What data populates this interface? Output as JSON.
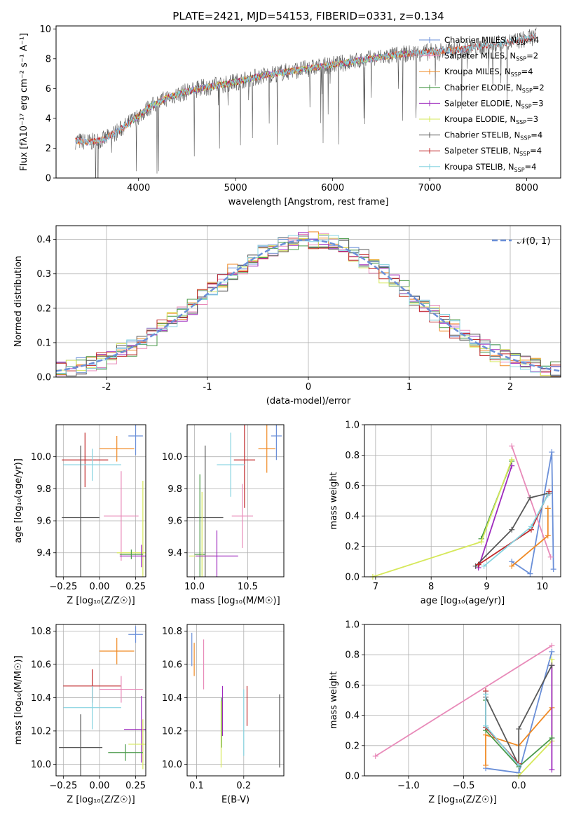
{
  "colors": {
    "c1": "#6a8fd8",
    "c2": "#e88ab9",
    "c3": "#f08a24",
    "c4": "#4a9a4a",
    "c5": "#9d29bd",
    "c6": "#d6e85a",
    "c7": "#585858",
    "c8": "#c0292a",
    "c9": "#86d3e0",
    "gaussian": "#6a8fd8",
    "grid": "#b0b0b0"
  },
  "chart_data": [
    {
      "id": "spectrum",
      "type": "line",
      "title": "PLATE=2421, MJD=54153, FIBERID=0331, z=0.134",
      "xlabel": "wavelength [Angstrom, rest frame]",
      "ylabel": "Flux [fλ10⁻¹⁷ erg cm⁻² s⁻¹ A⁻¹]",
      "xlim": [
        3150,
        8350
      ],
      "ylim": [
        0,
        10.2
      ],
      "xticks": [
        4000,
        5000,
        6000,
        7000,
        8000
      ],
      "yticks": [
        0,
        2,
        4,
        6,
        8,
        10
      ],
      "grid": false,
      "legend_position": "top-right",
      "legend": [
        {
          "label": "Chabrier MILES, N",
          "sub": "SSP",
          "suffix": "=4",
          "color": "c1"
        },
        {
          "label": "Salpeter MILES, N",
          "sub": "SSP",
          "suffix": "=2",
          "color": "c2"
        },
        {
          "label": "Kroupa MILES, N",
          "sub": "SSP",
          "suffix": "=4",
          "color": "c3"
        },
        {
          "label": "Chabrier ELODIE, N",
          "sub": "SSP",
          "suffix": "=2",
          "color": "c4"
        },
        {
          "label": "Salpeter ELODIE, N",
          "sub": "SSP",
          "suffix": "=3",
          "color": "c5"
        },
        {
          "label": "Kroupa ELODIE, N",
          "sub": "SSP",
          "suffix": "=3",
          "color": "c6"
        },
        {
          "label": "Chabrier STELIB, N",
          "sub": "SSP",
          "suffix": "=4",
          "color": "c7"
        },
        {
          "label": "Salpeter STELIB, N",
          "sub": "SSP",
          "suffix": "=4",
          "color": "c8"
        },
        {
          "label": "Kroupa STELIB, N",
          "sub": "SSP",
          "suffix": "=4",
          "color": "c9"
        }
      ],
      "continuum_x": [
        3350,
        3500,
        3650,
        3800,
        3950,
        4100,
        4300,
        4500,
        4700,
        4900,
        5100,
        5300,
        5500,
        5700,
        5900,
        6100,
        6300,
        6500,
        6700,
        6900,
        7100,
        7300,
        7500,
        7700,
        7900,
        8100
      ],
      "continuum_y": [
        2.5,
        2.4,
        2.6,
        3.2,
        3.9,
        4.7,
        5.4,
        5.8,
        6.1,
        6.3,
        6.6,
        6.9,
        7.1,
        7.3,
        7.5,
        7.7,
        7.9,
        8.1,
        8.3,
        8.4,
        8.5,
        8.6,
        8.8,
        9.0,
        9.2,
        9.5
      ],
      "series": [
        {
          "name": "Chabrier MILES",
          "color": "c1",
          "x_range": [
            3350,
            7420
          ]
        },
        {
          "name": "Salpeter MILES",
          "color": "c2",
          "x_range": [
            3350,
            7420
          ]
        },
        {
          "name": "Kroupa MILES",
          "color": "c3",
          "x_range": [
            3350,
            7420
          ]
        },
        {
          "name": "Chabrier ELODIE",
          "color": "c4",
          "x_range": [
            3900,
            6800
          ]
        },
        {
          "name": "Salpeter ELODIE",
          "color": "c5",
          "x_range": [
            3900,
            6800
          ]
        },
        {
          "name": "Kroupa ELODIE",
          "color": "c6",
          "x_range": [
            3900,
            6800
          ]
        },
        {
          "name": "Chabrier STELIB",
          "color": "c7",
          "x_range": [
            3350,
            8100
          ]
        },
        {
          "name": "Salpeter STELIB",
          "color": "c8",
          "x_range": [
            3350,
            8100
          ]
        },
        {
          "name": "Kroupa STELIB",
          "color": "c9",
          "x_range": [
            3350,
            8100
          ]
        }
      ]
    },
    {
      "id": "residuals",
      "type": "line",
      "xlabel": "(data-model)/error",
      "ylabel": "Normed distribution",
      "xlim": [
        -2.5,
        2.5
      ],
      "ylim": [
        0,
        0.44
      ],
      "xticks": [
        -2,
        -1,
        0,
        1,
        2
      ],
      "yticks": [
        0.0,
        0.1,
        0.2,
        0.3,
        0.4
      ],
      "grid": true,
      "legend_position": "top-right",
      "legend_label": "𝒩(0, 1)",
      "bin_width": 0.1,
      "series": [
        {
          "color": "c1",
          "shift": 0.02
        },
        {
          "color": "c2",
          "shift": -0.01
        },
        {
          "color": "c3",
          "shift": 0.015
        },
        {
          "color": "c4",
          "shift": -0.02
        },
        {
          "color": "c5",
          "shift": 0.0
        },
        {
          "color": "c6",
          "shift": 0.025
        },
        {
          "color": "c7",
          "shift": -0.015
        },
        {
          "color": "c8",
          "shift": 0.01
        },
        {
          "color": "c9",
          "shift": -0.005
        }
      ]
    },
    {
      "id": "age_vs_Z",
      "type": "scatter",
      "xlabel": "Z [log₁₀(Z/Z☉)]",
      "ylabel": "age  [log₁₀(age/yr)]",
      "xlim": [
        -0.3,
        0.32
      ],
      "ylim": [
        9.25,
        10.2
      ],
      "xticks": [
        -0.25,
        0.0,
        0.25
      ],
      "xtick_labels": [
        "−0.25",
        "0.00",
        "0.25"
      ],
      "yticks": [
        9.4,
        9.6,
        9.8,
        10.0
      ],
      "ytick_labels": [
        "9.4",
        "9.6",
        "9.8",
        "10.0"
      ],
      "grid": true,
      "points": [
        {
          "color": "c1",
          "x": 0.25,
          "y": 10.13,
          "xerr": 0.05,
          "yerr": 0.12
        },
        {
          "color": "c3",
          "x": 0.12,
          "y": 10.05,
          "xerr": 0.12,
          "yerr": 0.08
        },
        {
          "color": "c8",
          "x": -0.1,
          "y": 9.98,
          "xerr": 0.16,
          "yerr": 0.17
        },
        {
          "color": "c9",
          "x": -0.05,
          "y": 9.95,
          "xerr": 0.2,
          "yerr": 0.1
        },
        {
          "color": "c2",
          "x": 0.15,
          "y": 9.63,
          "xerr": 0.12,
          "yerr": 0.28
        },
        {
          "color": "c7",
          "x": -0.13,
          "y": 9.62,
          "xerr": 0.13,
          "yerr": 0.45
        },
        {
          "color": "c6",
          "x": 0.3,
          "y": 9.4,
          "xerr": 0.18,
          "yerr": 0.45
        },
        {
          "color": "c5",
          "x": 0.29,
          "y": 9.38,
          "xerr": 0.15,
          "yerr": 0.07
        },
        {
          "color": "c4",
          "x": 0.22,
          "y": 9.39,
          "xerr": 0.08,
          "yerr": 0.03
        }
      ]
    },
    {
      "id": "age_vs_mass",
      "type": "scatter",
      "xlabel": "mass [log₁₀(M/M☉)]",
      "xlim": [
        9.93,
        10.84
      ],
      "ylim": [
        9.25,
        10.2
      ],
      "xticks": [
        10.0,
        10.5
      ],
      "xtick_labels": [
        "10.0",
        "10.5"
      ],
      "yticks": [
        9.4,
        9.6,
        9.8,
        10.0
      ],
      "ytick_labels": [
        "9.4",
        "9.6",
        "9.8",
        "10.0"
      ],
      "grid": true,
      "points": [
        {
          "color": "c1",
          "x": 10.77,
          "y": 10.13,
          "xerr": 0.05,
          "yerr": 0.15
        },
        {
          "color": "c3",
          "x": 10.68,
          "y": 10.05,
          "xerr": 0.08,
          "yerr": 0.15
        },
        {
          "color": "c8",
          "x": 10.47,
          "y": 9.98,
          "xerr": 0.1,
          "yerr": 0.3
        },
        {
          "color": "c9",
          "x": 10.34,
          "y": 9.95,
          "xerr": 0.13,
          "yerr": 0.2
        },
        {
          "color": "c2",
          "x": 10.45,
          "y": 9.63,
          "xerr": 0.1,
          "yerr": 0.2
        },
        {
          "color": "c7",
          "x": 10.1,
          "y": 9.62,
          "xerr": 0.17,
          "yerr": 0.45
        },
        {
          "color": "c4",
          "x": 10.05,
          "y": 9.39,
          "xerr": 0.05,
          "yerr": 0.5
        },
        {
          "color": "c6",
          "x": 10.07,
          "y": 9.38,
          "xerr": 0.12,
          "yerr": 0.4
        },
        {
          "color": "c5",
          "x": 10.21,
          "y": 9.38,
          "xerr": 0.2,
          "yerr": 0.16
        }
      ]
    },
    {
      "id": "weight_vs_age",
      "type": "line",
      "xlabel": "age  [log₁₀(age/yr)]",
      "ylabel": "mass weight",
      "xlim": [
        6.8,
        10.33
      ],
      "ylim": [
        0,
        1.0
      ],
      "xticks": [
        7,
        8,
        9,
        10
      ],
      "xtick_labels": [
        "7",
        "8",
        "9",
        "10"
      ],
      "yticks": [
        0.0,
        0.2,
        0.4,
        0.6,
        0.8,
        1.0
      ],
      "ytick_labels": [
        "0.0",
        "0.2",
        "0.4",
        "0.6",
        "0.8",
        "1.0"
      ],
      "grid": true,
      "series": [
        {
          "color": "c1",
          "x": [
            9.45,
            9.78,
            10.17,
            10.2
          ],
          "y": [
            0.1,
            0.02,
            0.82,
            0.05
          ]
        },
        {
          "color": "c2",
          "x": [
            9.45,
            10.15
          ],
          "y": [
            0.86,
            0.13
          ]
        },
        {
          "color": "c3",
          "x": [
            9.45,
            10.1,
            10.1
          ],
          "y": [
            0.07,
            0.27,
            0.45
          ]
        },
        {
          "color": "c4",
          "x": [
            8.9,
            9.45
          ],
          "y": [
            0.25,
            0.76
          ]
        },
        {
          "color": "c5",
          "x": [
            8.85,
            9.45
          ],
          "y": [
            0.06,
            0.73
          ]
        },
        {
          "color": "c6",
          "x": [
            6.95,
            8.9,
            9.45
          ],
          "y": [
            0.0,
            0.23,
            0.77
          ]
        },
        {
          "color": "c7",
          "x": [
            8.8,
            9.45,
            9.78,
            10.12
          ],
          "y": [
            0.07,
            0.31,
            0.52,
            0.55
          ]
        },
        {
          "color": "c8",
          "x": [
            8.85,
            9.8,
            10.12
          ],
          "y": [
            0.08,
            0.31,
            0.56
          ]
        },
        {
          "color": "c9",
          "x": [
            8.95,
            9.8,
            10.1
          ],
          "y": [
            0.07,
            0.33,
            0.54
          ]
        }
      ]
    },
    {
      "id": "mass_vs_Z",
      "type": "scatter",
      "xlabel": "Z [log₁₀(Z/Z☉)]",
      "ylabel": "mass [log₁₀(M/M☉)]",
      "xlim": [
        -0.3,
        0.32
      ],
      "ylim": [
        9.93,
        10.84
      ],
      "xticks": [
        -0.25,
        0.0,
        0.25
      ],
      "xtick_labels": [
        "−0.25",
        "0.00",
        "0.25"
      ],
      "yticks": [
        10.0,
        10.2,
        10.4,
        10.6,
        10.8
      ],
      "ytick_labels": [
        "10.0",
        "10.2",
        "10.4",
        "10.6",
        "10.8"
      ],
      "grid": true,
      "points": [
        {
          "color": "c1",
          "x": 0.25,
          "y": 10.78,
          "xerr": 0.05,
          "yerr": 0.05
        },
        {
          "color": "c3",
          "x": 0.12,
          "y": 10.68,
          "xerr": 0.12,
          "yerr": 0.08
        },
        {
          "color": "c8",
          "x": -0.05,
          "y": 10.47,
          "xerr": 0.2,
          "yerr": 0.1
        },
        {
          "color": "c2",
          "x": 0.15,
          "y": 10.45,
          "xerr": 0.15,
          "yerr": 0.08
        },
        {
          "color": "c9",
          "x": -0.05,
          "y": 10.34,
          "xerr": 0.2,
          "yerr": 0.13
        },
        {
          "color": "c5",
          "x": 0.29,
          "y": 10.21,
          "xerr": 0.12,
          "yerr": 0.2
        },
        {
          "color": "c6",
          "x": 0.3,
          "y": 10.12,
          "xerr": 0.1,
          "yerr": 0.15
        },
        {
          "color": "c7",
          "x": -0.13,
          "y": 10.1,
          "xerr": 0.15,
          "yerr": 0.2
        },
        {
          "color": "c4",
          "x": 0.18,
          "y": 10.07,
          "xerr": 0.12,
          "yerr": 0.05
        }
      ]
    },
    {
      "id": "mass_vs_EBV",
      "type": "scatter",
      "xlabel": "E(B-V)",
      "xlim": [
        0.08,
        0.285
      ],
      "ylim": [
        9.93,
        10.84
      ],
      "xticks": [
        0.1,
        0.2
      ],
      "xtick_labels": [
        "0.1",
        "0.2"
      ],
      "yticks": [
        10.0,
        10.2,
        10.4,
        10.6,
        10.8
      ],
      "ytick_labels": [
        "10.0",
        "10.2",
        "10.4",
        "10.6",
        "10.8"
      ],
      "grid": true,
      "points": [
        {
          "color": "c1",
          "x": 0.09,
          "y": 10.69,
          "xerr": 0,
          "yerr": 0.1
        },
        {
          "color": "c3",
          "x": 0.095,
          "y": 10.63,
          "xerr": 0,
          "yerr": 0.1
        },
        {
          "color": "c2",
          "x": 0.115,
          "y": 10.6,
          "xerr": 0,
          "yerr": 0.15
        },
        {
          "color": "c5",
          "x": 0.155,
          "y": 10.32,
          "xerr": 0,
          "yerr": 0.15
        },
        {
          "color": "c4",
          "x": 0.153,
          "y": 10.25,
          "xerr": 0,
          "yerr": 0.15
        },
        {
          "color": "c6",
          "x": 0.152,
          "y": 10.18,
          "xerr": 0,
          "yerr": 0.2
        },
        {
          "color": "c9",
          "x": 0.2,
          "y": 10.25,
          "xerr": 0,
          "yerr": 0.2
        },
        {
          "color": "c8",
          "x": 0.207,
          "y": 10.35,
          "xerr": 0,
          "yerr": 0.12
        },
        {
          "color": "c7",
          "x": 0.276,
          "y": 10.2,
          "xerr": 0,
          "yerr": 0.22
        }
      ]
    },
    {
      "id": "weight_vs_Z",
      "type": "line",
      "xlabel": "Z [log₁₀(Z/Z☉)]",
      "ylabel": "mass weight",
      "xlim": [
        -1.4,
        0.38
      ],
      "ylim": [
        0,
        1.0
      ],
      "xticks": [
        -1.0,
        -0.5,
        0.0
      ],
      "xtick_labels": [
        "−1.0",
        "−0.5",
        "0.0"
      ],
      "yticks": [
        0.0,
        0.2,
        0.4,
        0.6,
        0.8,
        1.0
      ],
      "ytick_labels": [
        "0.0",
        "0.2",
        "0.4",
        "0.6",
        "0.8",
        "1.0"
      ],
      "grid": true,
      "series": [
        {
          "color": "c2",
          "x": [
            -1.3,
            0.3
          ],
          "y": [
            0.13,
            0.86
          ]
        },
        {
          "color": "c1",
          "x": [
            -0.3,
            0.0,
            0.3
          ],
          "y": [
            0.05,
            0.02,
            0.82
          ]
        },
        {
          "color": "c3",
          "x": [
            -0.3,
            -0.3,
            0.0,
            0.3
          ],
          "y": [
            0.07,
            0.27,
            0.2,
            0.45
          ]
        },
        {
          "color": "c6",
          "x": [
            0.0,
            0.3,
            0.3
          ],
          "y": [
            0.0,
            0.23,
            0.77
          ]
        },
        {
          "color": "c5",
          "x": [
            0.3,
            0.3
          ],
          "y": [
            0.04,
            0.73
          ]
        },
        {
          "color": "c4",
          "x": [
            -0.3,
            -0.3,
            0.0,
            0.3
          ],
          "y": [
            0.5,
            0.3,
            0.06,
            0.25
          ]
        },
        {
          "color": "c7",
          "x": [
            -0.3,
            0.0,
            0.0,
            0.3
          ],
          "y": [
            0.52,
            0.07,
            0.31,
            0.73
          ]
        },
        {
          "color": "c8",
          "x": [
            -0.3,
            -0.3,
            0.0
          ],
          "y": [
            0.56,
            0.32,
            0.08
          ]
        },
        {
          "color": "c9",
          "x": [
            -0.3,
            -0.3,
            0.0
          ],
          "y": [
            0.54,
            0.33,
            0.07
          ]
        }
      ]
    }
  ]
}
